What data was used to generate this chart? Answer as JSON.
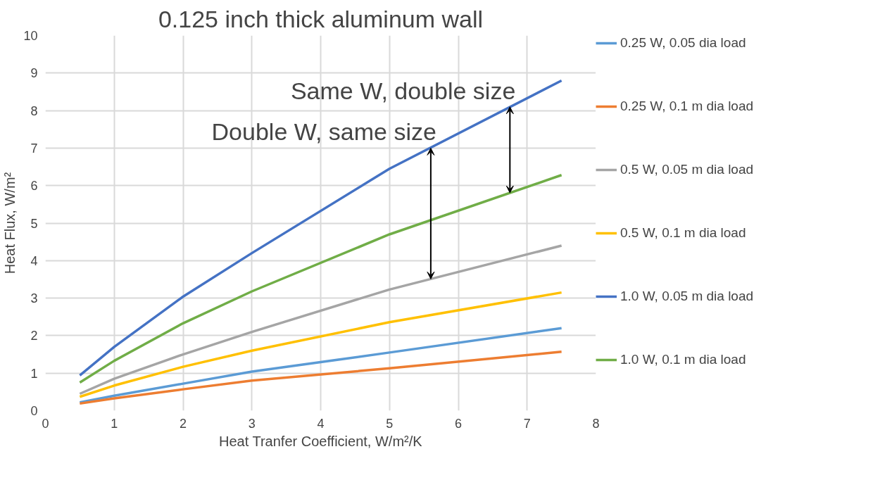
{
  "chart_data": {
    "type": "line",
    "title": "0.125 inch thick aluminum wall",
    "xlabel": "Heat Tranfer Coefficient, W/m²/K",
    "ylabel": "Heat Flux, W/m²",
    "x": [
      0.5,
      1,
      2,
      3,
      5,
      7.5
    ],
    "series": [
      {
        "name": "0.25 W, 0.05 dia load",
        "color": "#5b9bd5",
        "values": [
          0.22,
          0.4,
          0.72,
          1.04,
          1.55,
          2.2
        ]
      },
      {
        "name": "0.25 W, 0.1 m dia load",
        "color": "#ed7d31",
        "values": [
          0.19,
          0.33,
          0.57,
          0.8,
          1.13,
          1.57
        ]
      },
      {
        "name": "0.5 W, 0.05 m dia load",
        "color": "#a5a5a5",
        "values": [
          0.45,
          0.85,
          1.5,
          2.1,
          3.23,
          4.4
        ]
      },
      {
        "name": "0.5 W, 0.1 m dia load",
        "color": "#ffc000",
        "values": [
          0.37,
          0.67,
          1.17,
          1.6,
          2.36,
          3.15
        ]
      },
      {
        "name": "1.0 W, 0.05 m dia load",
        "color": "#4472c4",
        "values": [
          0.94,
          1.7,
          3.04,
          4.2,
          6.45,
          8.8
        ]
      },
      {
        "name": "1.0 W, 0.1 m dia load",
        "color": "#70ad47",
        "values": [
          0.75,
          1.33,
          2.33,
          3.18,
          4.7,
          6.28
        ]
      }
    ],
    "xlim": [
      0,
      8
    ],
    "xticks": [
      0,
      1,
      2,
      3,
      4,
      5,
      6,
      7,
      8
    ],
    "ylim": [
      0,
      10
    ],
    "yticks": [
      0,
      1,
      2,
      3,
      4,
      5,
      6,
      7,
      8,
      9,
      10
    ],
    "grid": true,
    "legend": "right",
    "marker": "none",
    "line_style": "solid",
    "annotations": [
      {
        "text": "Same W, double size",
        "x": 6.75,
        "y": 8.1
      },
      {
        "text": "Double W, same size",
        "x": 5.6,
        "y": 7.0
      }
    ]
  }
}
